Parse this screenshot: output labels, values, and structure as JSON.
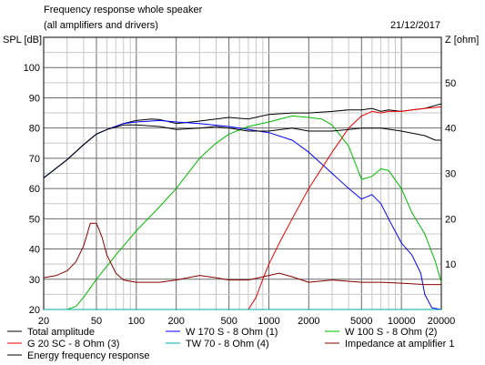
{
  "header": {
    "title": "Frequency response whole speaker",
    "subtitle": "(all amplifiers and drivers)",
    "date": "21/12/2017"
  },
  "chart_data": {
    "type": "line",
    "xscale": "log",
    "xlim": [
      20,
      20000
    ],
    "ylim": [
      20,
      110
    ],
    "y2lim": [
      0,
      60
    ],
    "ylabel": "SPL [dB]",
    "y2label": "Z [ohm]",
    "grid": true,
    "legend_position": "bottom",
    "x_ticks": [
      "20",
      "50",
      "100",
      "200",
      "500",
      "1000",
      "2000",
      "5000",
      "10000",
      "20000"
    ],
    "y_ticks": [
      "20",
      "30",
      "40",
      "50",
      "60",
      "70",
      "80",
      "90",
      "100"
    ],
    "y2_ticks": [
      "10",
      "20",
      "30",
      "40",
      "50"
    ],
    "series": [
      {
        "name": "Total amplitude",
        "color": "#000000",
        "axis": "left",
        "points": [
          [
            20,
            63.5
          ],
          [
            30,
            69.5
          ],
          [
            40,
            74.5
          ],
          [
            50,
            78
          ],
          [
            60,
            79.5
          ],
          [
            80,
            81.5
          ],
          [
            100,
            82.5
          ],
          [
            130,
            83
          ],
          [
            150,
            82.8
          ],
          [
            200,
            81.5
          ],
          [
            300,
            82.3
          ],
          [
            400,
            83
          ],
          [
            500,
            83.5
          ],
          [
            700,
            83
          ],
          [
            1000,
            84.5
          ],
          [
            1500,
            85
          ],
          [
            2000,
            85
          ],
          [
            3000,
            85.5
          ],
          [
            4000,
            86
          ],
          [
            5000,
            86
          ],
          [
            6000,
            86.5
          ],
          [
            7000,
            85.5
          ],
          [
            8000,
            86
          ],
          [
            10000,
            85.5
          ],
          [
            12000,
            86
          ],
          [
            15000,
            86.5
          ],
          [
            18000,
            87.5
          ],
          [
            20000,
            88
          ]
        ]
      },
      {
        "name": "W 170 S - 8 Ohm (1)",
        "color": "#0000ff",
        "axis": "left",
        "points": [
          [
            20,
            63.5
          ],
          [
            30,
            69.5
          ],
          [
            40,
            74.5
          ],
          [
            50,
            78
          ],
          [
            60,
            79.5
          ],
          [
            80,
            81.5
          ],
          [
            100,
            82
          ],
          [
            150,
            82.5
          ],
          [
            200,
            82
          ],
          [
            300,
            81.5
          ],
          [
            500,
            80.5
          ],
          [
            700,
            79.5
          ],
          [
            1000,
            78.5
          ],
          [
            1500,
            76
          ],
          [
            2000,
            72
          ],
          [
            3000,
            65
          ],
          [
            4000,
            60
          ],
          [
            5000,
            56.5
          ],
          [
            6000,
            58
          ],
          [
            7000,
            55
          ],
          [
            8000,
            50
          ],
          [
            10000,
            42
          ],
          [
            12000,
            38
          ],
          [
            14000,
            32
          ],
          [
            15000,
            25
          ],
          [
            17000,
            20.5
          ],
          [
            20000,
            20
          ]
        ]
      },
      {
        "name": "W 100 S - 8 Ohm (2)",
        "color": "#00bb00",
        "axis": "left",
        "points": [
          [
            30,
            20
          ],
          [
            35,
            21
          ],
          [
            40,
            24
          ],
          [
            50,
            30
          ],
          [
            70,
            38
          ],
          [
            100,
            46
          ],
          [
            150,
            54
          ],
          [
            200,
            60
          ],
          [
            300,
            70
          ],
          [
            400,
            75
          ],
          [
            500,
            78
          ],
          [
            700,
            80.5
          ],
          [
            1000,
            82
          ],
          [
            1500,
            84
          ],
          [
            2000,
            83.5
          ],
          [
            2500,
            83
          ],
          [
            3000,
            81
          ],
          [
            4000,
            74
          ],
          [
            5000,
            63
          ],
          [
            6000,
            64
          ],
          [
            7000,
            66.5
          ],
          [
            8000,
            66
          ],
          [
            10000,
            60
          ],
          [
            12000,
            52
          ],
          [
            15000,
            45
          ],
          [
            18000,
            36
          ],
          [
            20000,
            29
          ]
        ]
      },
      {
        "name": "G 20 SC - 8 Ohm (3)",
        "color": "#ee0000",
        "axis": "left",
        "points": [
          [
            700,
            20
          ],
          [
            800,
            24
          ],
          [
            900,
            30
          ],
          [
            1000,
            35
          ],
          [
            1200,
            42
          ],
          [
            1500,
            50
          ],
          [
            2000,
            60
          ],
          [
            3000,
            72
          ],
          [
            4000,
            80
          ],
          [
            5000,
            84
          ],
          [
            6000,
            85.5
          ],
          [
            7000,
            85
          ],
          [
            8000,
            85.5
          ],
          [
            10000,
            85.5
          ],
          [
            12000,
            86
          ],
          [
            15000,
            86.5
          ],
          [
            20000,
            87
          ]
        ]
      },
      {
        "name": "TW 70 - 8 Ohm (4)",
        "color": "#00aaaa",
        "axis": "left",
        "points": [
          [
            20,
            20
          ],
          [
            20000,
            20
          ]
        ]
      },
      {
        "name": "Impedance at amplifier 1",
        "color": "#880000",
        "axis": "right",
        "points": [
          [
            20,
            7
          ],
          [
            25,
            7.5
          ],
          [
            30,
            8.5
          ],
          [
            35,
            10.5
          ],
          [
            40,
            14
          ],
          [
            45,
            19
          ],
          [
            50,
            19
          ],
          [
            55,
            16
          ],
          [
            60,
            12
          ],
          [
            70,
            8
          ],
          [
            80,
            6.5
          ],
          [
            100,
            6
          ],
          [
            150,
            6
          ],
          [
            200,
            6.5
          ],
          [
            300,
            7.5
          ],
          [
            400,
            7
          ],
          [
            500,
            6.5
          ],
          [
            700,
            6.5
          ],
          [
            1000,
            7.5
          ],
          [
            1200,
            8
          ],
          [
            1500,
            7.2
          ],
          [
            2000,
            6
          ],
          [
            3000,
            6.5
          ],
          [
            5000,
            6
          ],
          [
            7000,
            6
          ],
          [
            10000,
            5.8
          ],
          [
            15000,
            5.5
          ],
          [
            20000,
            5.5
          ]
        ]
      },
      {
        "name": "Energy frequency response",
        "color": "#000000",
        "axis": "left",
        "points": [
          [
            20,
            63.5
          ],
          [
            30,
            69.5
          ],
          [
            40,
            74.5
          ],
          [
            50,
            78
          ],
          [
            60,
            79.5
          ],
          [
            80,
            81
          ],
          [
            100,
            81
          ],
          [
            150,
            80.5
          ],
          [
            200,
            79.5
          ],
          [
            300,
            80
          ],
          [
            400,
            80.5
          ],
          [
            500,
            80
          ],
          [
            700,
            79
          ],
          [
            1000,
            79
          ],
          [
            1500,
            80
          ],
          [
            2000,
            79
          ],
          [
            3000,
            79
          ],
          [
            4000,
            79.5
          ],
          [
            5000,
            80
          ],
          [
            7000,
            80
          ],
          [
            10000,
            79
          ],
          [
            15000,
            77.5
          ],
          [
            18000,
            76
          ],
          [
            20000,
            76
          ]
        ]
      }
    ]
  }
}
